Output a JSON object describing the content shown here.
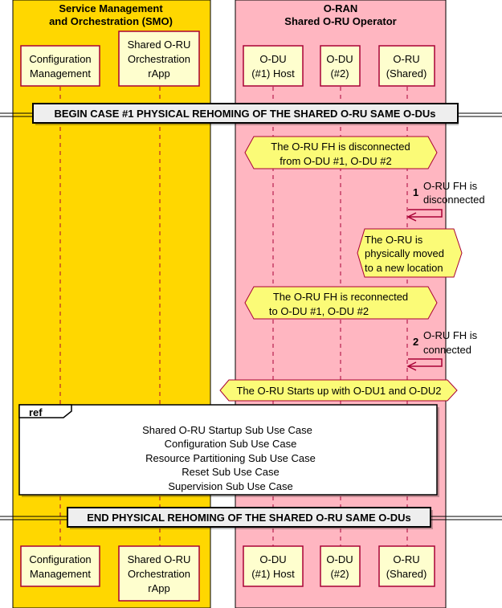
{
  "groups": {
    "smo": {
      "line1": "Service Management",
      "line2": "and Orchestration (SMO)",
      "color": "#FFD700"
    },
    "oran": {
      "line1": "O-RAN",
      "line2": "Shared O-RU Operator",
      "color": "#FFB6C1"
    }
  },
  "participants": {
    "config_mgmt": {
      "line1": "Configuration",
      "line2": "Management"
    },
    "rapp": {
      "line1": "Shared O-RU",
      "line2": "Orchestration",
      "line3": "rApp"
    },
    "odu1": {
      "line1": "O-DU",
      "line2": "(#1) Host"
    },
    "odu2": {
      "line1": "O-DU",
      "line2": "(#2)"
    },
    "oru": {
      "line1": "O-RU",
      "line2": "(Shared)"
    }
  },
  "dividers": {
    "begin": "BEGIN CASE #1 PHYSICAL REHOMING OF THE SHARED O-RU SAME O-DUs",
    "end": "END PHYSICAL REHOMING OF THE SHARED O-RU SAME O-DUs"
  },
  "notes": {
    "disconnected": {
      "line1": "The O-RU FH is disconnected",
      "line2": "from O-DU #1, O-DU #2"
    },
    "moved": {
      "line1": "The O-RU is",
      "line2": "physically moved",
      "line3": "to a new location"
    },
    "reconnected": {
      "line1": "The O-RU FH is reconnected",
      "line2": "to O-DU #1, O-DU #2"
    },
    "startup": {
      "line1": "The O-RU Starts up with O-DU1 and O-DU2"
    }
  },
  "messages": {
    "m1": {
      "num": "1",
      "line1": "O-RU FH is",
      "line2": "disconnected"
    },
    "m2": {
      "num": "2",
      "line1": "O-RU FH is",
      "line2": "connected"
    }
  },
  "ref": {
    "label": "ref",
    "lines": [
      "Shared O-RU Startup Sub Use Case",
      "Configuration Sub Use Case",
      "Resource Partitioning Sub Use Case",
      "Reset Sub Use Case",
      "Supervision Sub Use Case"
    ]
  },
  "colors": {
    "participant_fill": "#FEFECE",
    "participant_border": "#A80036",
    "note_fill": "#FBFB77",
    "arrow": "#A80036"
  }
}
